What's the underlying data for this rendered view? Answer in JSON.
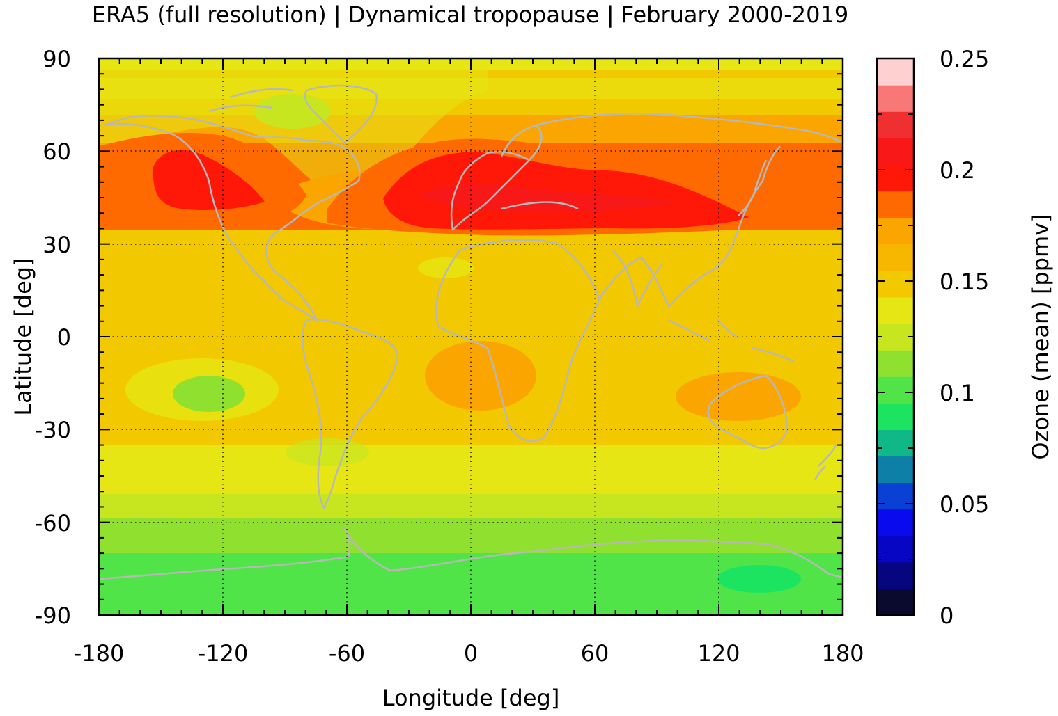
{
  "title": "ERA5 (full resolution) | Dynamical tropopause | February 2000-2019",
  "chart_data": {
    "type": "heatmap",
    "projection": "equirectangular",
    "x_label": "Longitude [deg]",
    "y_label": "Latitude [deg]",
    "x_range": [
      -180,
      180
    ],
    "y_range": [
      -90,
      90
    ],
    "x_ticks": [
      "-180",
      "-120",
      "-60",
      "0",
      "60",
      "120",
      "180"
    ],
    "x_tick_values": [
      -180,
      -120,
      -60,
      0,
      60,
      120,
      180
    ],
    "y_ticks": [
      "90",
      "60",
      "30",
      "0",
      "-30",
      "-60",
      "-90"
    ],
    "y_tick_values": [
      90,
      60,
      30,
      0,
      -30,
      -60,
      -90
    ],
    "grid": "dotted",
    "coastlines": "grey",
    "colorbar": {
      "label": "Ozone (mean) [ppmv]",
      "range": [
        0,
        0.25
      ],
      "tick_labels": [
        "0",
        "0.05",
        "0.1",
        "0.15",
        "0.2",
        "0.25"
      ],
      "tick_values": [
        0,
        0.05,
        0.1,
        0.15,
        0.2,
        0.25
      ],
      "bins": 20,
      "colors": [
        "#0a0a2e",
        "#06067e",
        "#0606c4",
        "#0a0aee",
        "#0a40d4",
        "#0e80a8",
        "#10b888",
        "#1ce460",
        "#50e448",
        "#90e030",
        "#c8e620",
        "#e6e614",
        "#f2c800",
        "#f7b600",
        "#fba600",
        "#ff6a00",
        "#ff1808",
        "#f81818",
        "#f03030",
        "#f87878",
        "#ffd0d0"
      ]
    },
    "zonal_mean_ozone": {
      "latitude": [
        90,
        80,
        70,
        60,
        50,
        40,
        30,
        20,
        10,
        0,
        -10,
        -20,
        -30,
        -40,
        -50,
        -60,
        -70,
        -80,
        -90
      ],
      "value": [
        0.135,
        0.13,
        0.14,
        0.165,
        0.2,
        0.175,
        0.15,
        0.145,
        0.145,
        0.145,
        0.15,
        0.145,
        0.14,
        0.135,
        0.13,
        0.115,
        0.105,
        0.1,
        0.1
      ]
    },
    "regions": [
      {
        "name": "north-pacific-max",
        "lon": [
          -155,
          -100
        ],
        "lat": [
          40,
          60
        ],
        "value": 0.205
      },
      {
        "name": "eurasian-max",
        "lon": [
          -40,
          135
        ],
        "lat": [
          38,
          56
        ],
        "value": 0.2
      },
      {
        "name": "south-pacific-min",
        "lon": [
          -140,
          -110
        ],
        "lat": [
          -27,
          -12
        ],
        "value": 0.115
      },
      {
        "name": "antarctic-min",
        "lon": [
          120,
          170
        ],
        "lat": [
          -85,
          -77
        ],
        "value": 0.095
      }
    ]
  }
}
